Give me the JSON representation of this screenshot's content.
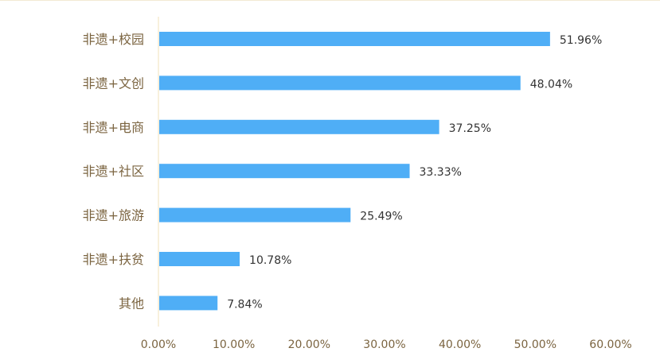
{
  "chart_data": {
    "type": "bar",
    "orientation": "horizontal",
    "categories": [
      "非遗+校园",
      "非遗+文创",
      "非遗+电商",
      "非遗+社区",
      "非遗+旅游",
      "非遗+扶贫",
      "其他"
    ],
    "values": [
      51.96,
      48.04,
      37.25,
      33.33,
      25.49,
      10.78,
      7.84
    ],
    "data_labels": [
      "51.96%",
      "48.04%",
      "37.25%",
      "33.33%",
      "25.49%",
      "10.78%",
      "7.84%"
    ],
    "x_ticks": [
      0,
      10,
      20,
      30,
      40,
      50,
      60
    ],
    "x_tick_labels": [
      "0.00%",
      "10.00%",
      "20.00%",
      "30.00%",
      "40.00%",
      "50.00%",
      "60.00%"
    ],
    "xlim": [
      0,
      60
    ],
    "title": "",
    "xlabel": "",
    "ylabel": "",
    "grid": false,
    "legend": "none",
    "colors": {
      "bar": "#4faef6",
      "axis": "#f3e7c4",
      "category_text": "#7b6440",
      "value_text": "#333333",
      "tick_text": "#7b6440"
    }
  }
}
